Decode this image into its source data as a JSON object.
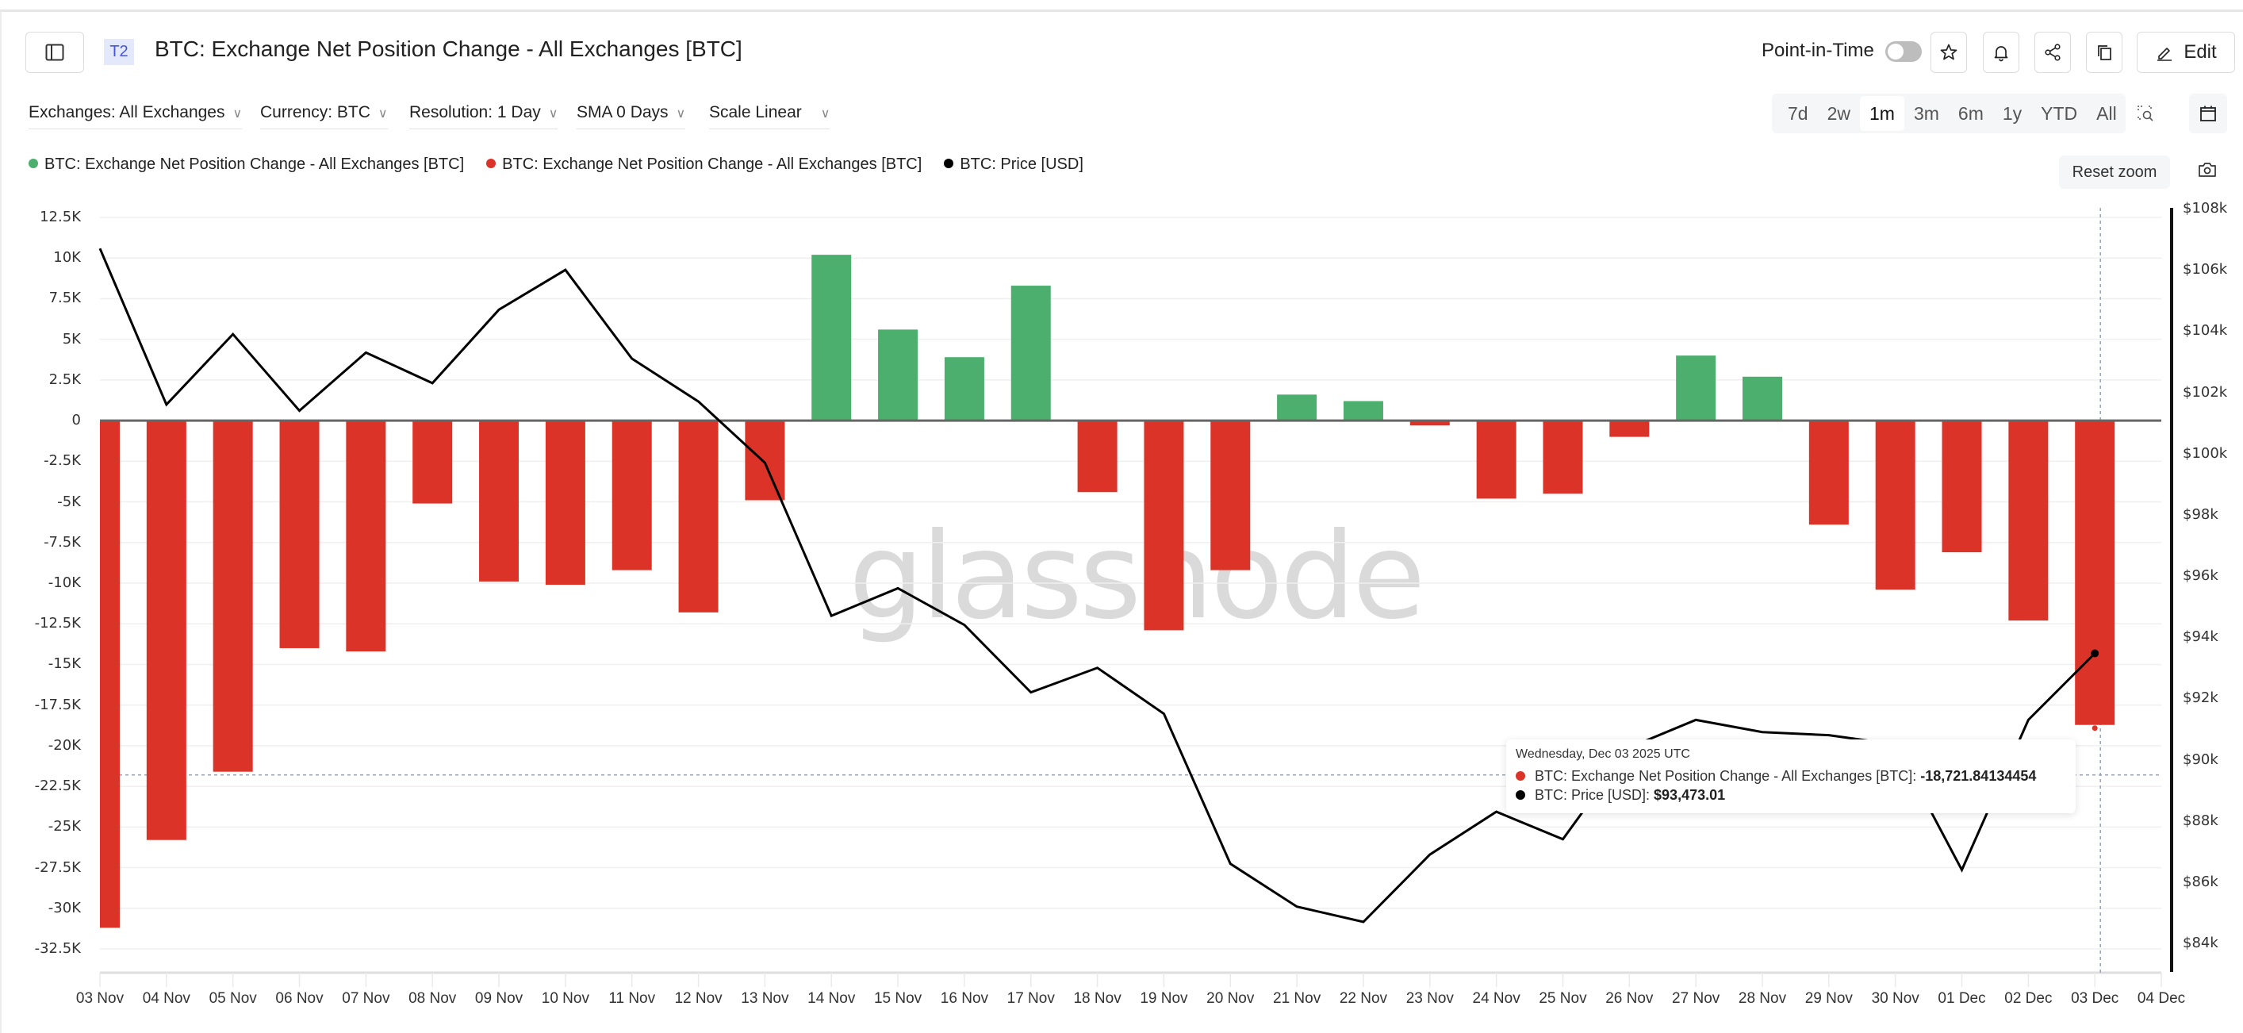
{
  "header": {
    "badge": "T2",
    "title": "BTC: Exchange Net Position Change - All Exchanges [BTC]",
    "point_in_time_label": "Point-in-Time",
    "edit_label": "Edit"
  },
  "filters": [
    {
      "label": "Exchanges: All Exchanges"
    },
    {
      "label": "Currency: BTC"
    },
    {
      "label": "Resolution: 1 Day"
    },
    {
      "label": "SMA 0 Days"
    },
    {
      "label": "Scale Linear"
    }
  ],
  "ranges": [
    {
      "label": "7d"
    },
    {
      "label": "2w"
    },
    {
      "label": "1m",
      "active": true
    },
    {
      "label": "3m"
    },
    {
      "label": "6m"
    },
    {
      "label": "1y"
    },
    {
      "label": "YTD"
    },
    {
      "label": "All"
    }
  ],
  "legend": [
    {
      "label": "BTC: Exchange Net Position Change - All Exchanges [BTC]",
      "color": "#4caf6e"
    },
    {
      "label": "BTC: Exchange Net Position Change - All Exchanges [BTC]",
      "color": "#dc3328"
    },
    {
      "label": "BTC: Price [USD]",
      "color": "#000000"
    }
  ],
  "reset_zoom_label": "Reset zoom",
  "watermark": "glassnode",
  "tooltip": {
    "date": "Wednesday, Dec 03 2025 UTC",
    "series1_label": "BTC: Exchange Net Position Change - All Exchanges [BTC]: ",
    "series1_value": "-18,721.84134454",
    "series2_label": "BTC: Price [USD]: ",
    "series2_value": "$93,473.01"
  },
  "colors": {
    "positive": "#4caf6e",
    "negative": "#dc3328",
    "price": "#000000"
  },
  "chart_data": {
    "type": "bar",
    "title": "BTC: Exchange Net Position Change - All Exchanges [BTC]",
    "categories": [
      "03 Nov",
      "04 Nov",
      "05 Nov",
      "06 Nov",
      "07 Nov",
      "08 Nov",
      "09 Nov",
      "10 Nov",
      "11 Nov",
      "12 Nov",
      "13 Nov",
      "14 Nov",
      "15 Nov",
      "16 Nov",
      "17 Nov",
      "18 Nov",
      "19 Nov",
      "20 Nov",
      "21 Nov",
      "22 Nov",
      "23 Nov",
      "24 Nov",
      "25 Nov",
      "26 Nov",
      "27 Nov",
      "28 Nov",
      "29 Nov",
      "30 Nov",
      "01 Dec",
      "02 Dec",
      "03 Dec"
    ],
    "x_tick_labels": [
      "03 Nov",
      "04 Nov",
      "05 Nov",
      "06 Nov",
      "07 Nov",
      "08 Nov",
      "09 Nov",
      "10 Nov",
      "11 Nov",
      "12 Nov",
      "13 Nov",
      "14 Nov",
      "15 Nov",
      "16 Nov",
      "17 Nov",
      "18 Nov",
      "19 Nov",
      "20 Nov",
      "21 Nov",
      "22 Nov",
      "23 Nov",
      "24 Nov",
      "25 Nov",
      "26 Nov",
      "27 Nov",
      "28 Nov",
      "29 Nov",
      "30 Nov",
      "01 Dec",
      "02 Dec",
      "03 Dec",
      "04 Dec"
    ],
    "series": [
      {
        "name": "BTC: Exchange Net Position Change - All Exchanges [BTC]",
        "type": "bar",
        "axis": "left",
        "values": [
          -31200,
          -25800,
          -21600,
          -14000,
          -14200,
          -5100,
          -9900,
          -10100,
          -9200,
          -11800,
          -4900,
          10200,
          5600,
          3900,
          8300,
          -4400,
          -12900,
          -9200,
          1600,
          1200,
          -300,
          -4800,
          -4500,
          -1000,
          4000,
          2700,
          -6400,
          -10400,
          -8100,
          -12300,
          -18721.84
        ]
      },
      {
        "name": "BTC: Price [USD]",
        "type": "line",
        "axis": "right",
        "values": [
          106700,
          101600,
          103900,
          101400,
          103300,
          102300,
          104700,
          106000,
          103100,
          101700,
          99700,
          94700,
          95600,
          94400,
          92200,
          93000,
          91500,
          86600,
          85200,
          84700,
          86900,
          88300,
          87400,
          90400,
          91300,
          90900,
          90800,
          90500,
          86400,
          91300,
          93473.01
        ]
      }
    ],
    "y_left": {
      "ticks": [
        "12.5K",
        "10K",
        "7.5K",
        "5K",
        "2.5K",
        "0",
        "-2.5K",
        "-5K",
        "-7.5K",
        "-10K",
        "-12.5K",
        "-15K",
        "-17.5K",
        "-20K",
        "-22.5K",
        "-25K",
        "-27.5K",
        "-30K",
        "-32.5K"
      ],
      "range": [
        -32500,
        12500
      ]
    },
    "y_right": {
      "ticks": [
        "$108k",
        "$106k",
        "$104k",
        "$102k",
        "$100k",
        "$98k",
        "$96k",
        "$94k",
        "$92k",
        "$90k",
        "$88k",
        "$86k",
        "$84k"
      ],
      "range": [
        84000,
        108000
      ]
    },
    "xlabel": "",
    "ylabel": "",
    "grid": true,
    "legend_position": "top-left"
  }
}
